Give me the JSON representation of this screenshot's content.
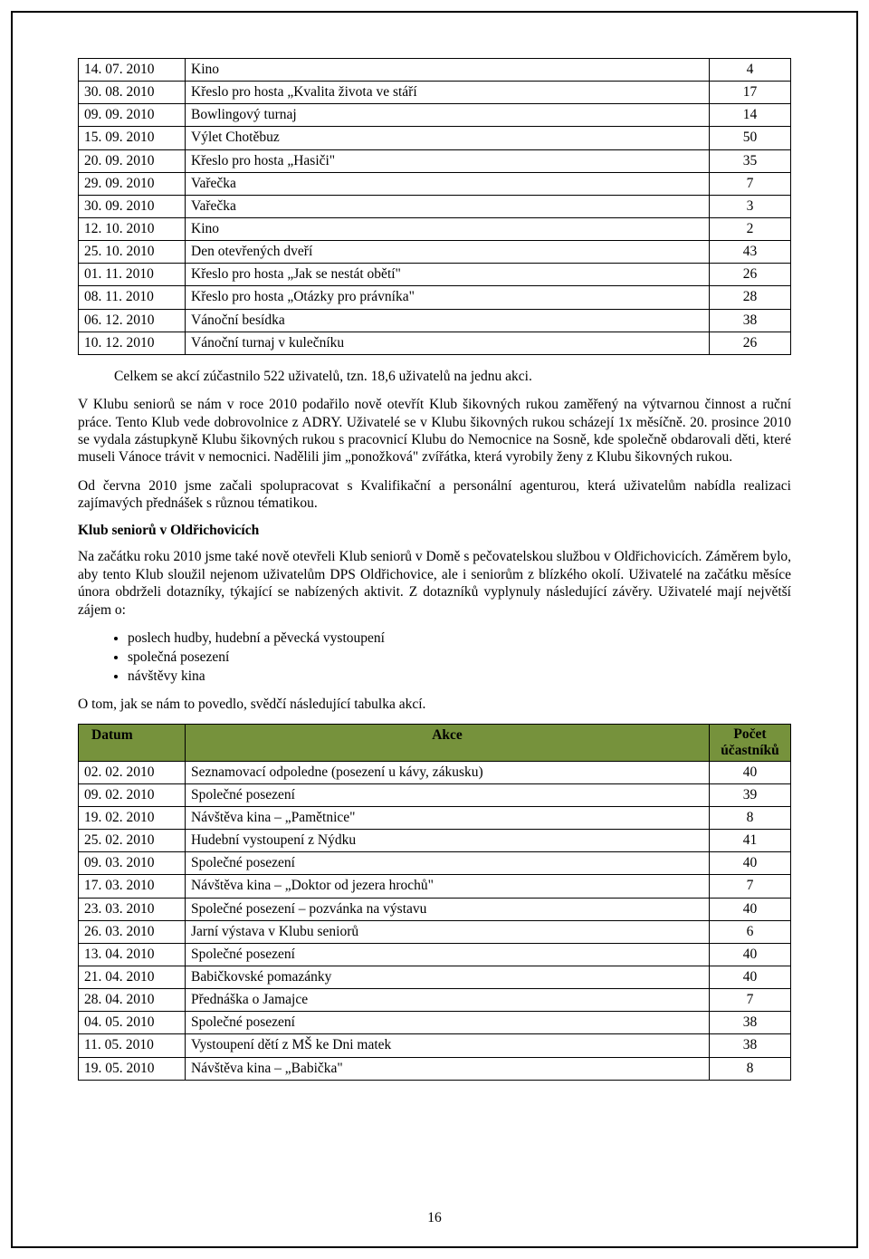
{
  "table1": {
    "rows": [
      {
        "date": "14. 07. 2010",
        "event": "Kino",
        "count": "4"
      },
      {
        "date": "30. 08. 2010",
        "event": "Křeslo pro hosta „Kvalita života ve stáří",
        "count": "17"
      },
      {
        "date": "09. 09. 2010",
        "event": "Bowlingový turnaj",
        "count": "14"
      },
      {
        "date": "15. 09. 2010",
        "event": "Výlet Chotěbuz",
        "count": "50"
      },
      {
        "date": "20. 09. 2010",
        "event": "Křeslo pro hosta „Hasiči\"",
        "count": "35"
      },
      {
        "date": "29. 09. 2010",
        "event": "Vařečka",
        "count": "7"
      },
      {
        "date": "30. 09. 2010",
        "event": "Vařečka",
        "count": "3"
      },
      {
        "date": "12. 10. 2010",
        "event": "Kino",
        "count": "2"
      },
      {
        "date": "25. 10. 2010",
        "event": "Den otevřených dveří",
        "count": "43"
      },
      {
        "date": "01. 11. 2010",
        "event": "Křeslo pro hosta „Jak se nestát obětí\"",
        "count": "26"
      },
      {
        "date": "08. 11. 2010",
        "event": "Křeslo pro hosta „Otázky pro právníka\"",
        "count": "28"
      },
      {
        "date": "06. 12. 2010",
        "event": "Vánoční besídka",
        "count": "38"
      },
      {
        "date": "10. 12. 2010",
        "event": "Vánoční turnaj v kulečníku",
        "count": "26"
      }
    ]
  },
  "para1": "Celkem se akcí zúčastnilo 522 uživatelů, tzn. 18,6 uživatelů na jednu akci.",
  "para2": "V Klubu seniorů se nám v roce 2010 podařilo nově otevřít Klub šikovných rukou zaměřený na výtvarnou činnost a ruční práce. Tento Klub vede dobrovolnice z ADRY. Uživatelé se v Klubu šikovných rukou scházejí 1x měsíčně. 20. prosince 2010 se vydala zástupkyně Klubu šikovných rukou s pracovnicí Klubu do Nemocnice na Sosně, kde společně obdarovali děti, které museli Vánoce trávit v nemocnici. Nadělili jim „ponožková\" zvířátka, která vyrobily ženy z Klubu šikovných rukou.",
  "para3": "Od června 2010 jsme začali spolupracovat s Kvalifikační a personální agenturou, která uživatelům nabídla realizaci zajímavých přednášek s různou tématikou.",
  "heading1": "Klub seniorů v Oldřichovicích",
  "para4": "Na začátku roku 2010 jsme také nově otevřeli Klub seniorů v Domě s pečovatelskou službou v Oldřichovicích. Záměrem bylo, aby tento Klub sloužil nejenom uživatelům DPS Oldřichovice, ale i seniorům z blízkého okolí. Uživatelé na začátku měsíce února obdrželi dotazníky, týkající se nabízených aktivit. Z dotazníků vyplynuly následující závěry. Uživatelé mají největší zájem o:",
  "bullets": [
    "poslech hudby, hudební a pěvecká vystoupení",
    "společná posezení",
    "návštěvy kina"
  ],
  "para5": "O tom, jak se nám to povedlo, svědčí následující tabulka akcí.",
  "table2": {
    "headers": {
      "date": "Datum",
      "event": "Akce",
      "count": "Počet účastníků"
    },
    "header_bg": "#76923c",
    "rows": [
      {
        "date": "02. 02. 2010",
        "event": "Seznamovací odpoledne (posezení u kávy, zákusku)",
        "count": "40"
      },
      {
        "date": "09. 02. 2010",
        "event": "Společné posezení",
        "count": "39"
      },
      {
        "date": "19. 02. 2010",
        "event": "Návštěva kina – „Pamětnice\"",
        "count": "8"
      },
      {
        "date": "25. 02. 2010",
        "event": "Hudební vystoupení z Nýdku",
        "count": "41"
      },
      {
        "date": "09. 03. 2010",
        "event": "Společné posezení",
        "count": "40"
      },
      {
        "date": "17. 03. 2010",
        "event": "Návštěva kina – „Doktor od jezera hrochů\"",
        "count": "7"
      },
      {
        "date": "23. 03. 2010",
        "event": "Společné posezení – pozvánka na výstavu",
        "count": "40"
      },
      {
        "date": "26. 03. 2010",
        "event": "Jarní výstava v Klubu seniorů",
        "count": "6"
      },
      {
        "date": "13. 04. 2010",
        "event": "Společné posezení",
        "count": "40"
      },
      {
        "date": "21. 04. 2010",
        "event": "Babičkovské pomazánky",
        "count": "40"
      },
      {
        "date": "28. 04. 2010",
        "event": "Přednáška o Jamajce",
        "count": "7"
      },
      {
        "date": "04. 05. 2010",
        "event": "Společné posezení",
        "count": "38"
      },
      {
        "date": "11. 05. 2010",
        "event": "Vystoupení dětí z MŠ ke Dni matek",
        "count": "38"
      },
      {
        "date": "19. 05. 2010",
        "event": "Návštěva kina – „Babička\"",
        "count": "8"
      }
    ]
  },
  "page_number": "16"
}
